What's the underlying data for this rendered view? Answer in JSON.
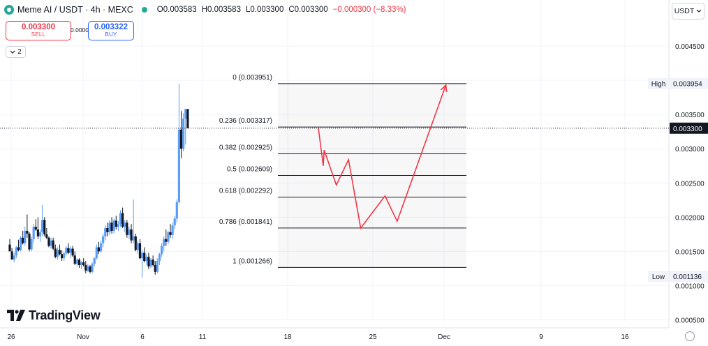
{
  "header": {
    "title": "Meme AI / USDT · 4h · MEXC",
    "open": "O0.003583",
    "high": "H0.003583",
    "low": "L0.003300",
    "close": "C0.003300",
    "change": "−0.000300 (−8.33%)"
  },
  "trade": {
    "sell_price": "0.003300",
    "sell_label": "SELL",
    "spread": "0.000022",
    "buy_price": "0.003322",
    "buy_label": "BUY"
  },
  "indicators_count": "2",
  "currency": "USDT",
  "brand": "TradingView",
  "colors": {
    "up": "#5b9cf6",
    "down": "#131722",
    "projection": "#f23645",
    "fib_line": "#131722",
    "price_tag": "#131722"
  },
  "chart_data": {
    "type": "candlestick",
    "x_tick_labels": [
      "26",
      "Nov",
      "6",
      "11",
      "18",
      "25",
      "Dec",
      "9",
      "16"
    ],
    "y_ticks": [
      "0.004500",
      "0.004000",
      "0.003500",
      "0.003000",
      "0.002500",
      "0.002000",
      "0.001500",
      "0.001000",
      "0.000500"
    ],
    "ylim": [
      0.0004,
      0.0046
    ],
    "last_price": "0.003300",
    "high_label": "High",
    "high_value": "0.003954",
    "low_label": "Low",
    "low_value": "0.001136",
    "fibonacci": [
      {
        "label": "0 (0.003951)",
        "value": 0.003951
      },
      {
        "label": "0.236 (0.003317)",
        "value": 0.003317
      },
      {
        "label": "0.382 (0.002925)",
        "value": 0.002925
      },
      {
        "label": "0.5 (0.002609)",
        "value": 0.002609
      },
      {
        "label": "0.618 (0.002292)",
        "value": 0.002292
      },
      {
        "label": "0.786 (0.001841)",
        "value": 0.001841
      },
      {
        "label": "1 (0.001266)",
        "value": 0.001266
      }
    ],
    "projection_path": [
      {
        "date": "Nov 20",
        "price": 0.0033
      },
      {
        "date": "Nov 20",
        "price": 0.00275
      },
      {
        "date": "Nov 21",
        "price": 0.00298
      },
      {
        "date": "Nov 22",
        "price": 0.00247
      },
      {
        "date": "Nov 23",
        "price": 0.00284
      },
      {
        "date": "Nov 24",
        "price": 0.00184
      },
      {
        "date": "Nov 26",
        "price": 0.00231
      },
      {
        "date": "Nov 27",
        "price": 0.00194
      },
      {
        "date": "Dec 1",
        "price": 0.00393
      }
    ],
    "candles": [
      [
        0.0016,
        0.00168,
        0.00152,
        0.0015
      ],
      [
        0.0015,
        0.00155,
        0.00142,
        0.00138
      ],
      [
        0.00138,
        0.00148,
        0.00134,
        0.00144
      ],
      [
        0.00144,
        0.00158,
        0.0014,
        0.00156
      ],
      [
        0.00156,
        0.00167,
        0.0015,
        0.00152
      ],
      [
        0.00152,
        0.00172,
        0.0015,
        0.0017
      ],
      [
        0.0017,
        0.0018,
        0.0016,
        0.00162
      ],
      [
        0.00162,
        0.00186,
        0.00158,
        0.0018
      ],
      [
        0.0018,
        0.00204,
        0.0017,
        0.00176
      ],
      [
        0.00176,
        0.00178,
        0.0015,
        0.00153
      ],
      [
        0.00153,
        0.00172,
        0.0015,
        0.00168
      ],
      [
        0.00168,
        0.0019,
        0.00162,
        0.00186
      ],
      [
        0.00186,
        0.00197,
        0.0018,
        0.00182
      ],
      [
        0.00182,
        0.002,
        0.00168,
        0.00172
      ],
      [
        0.00172,
        0.00182,
        0.00164,
        0.00178
      ],
      [
        0.00178,
        0.00218,
        0.00172,
        0.00196
      ],
      [
        0.00196,
        0.002,
        0.00172,
        0.00175
      ],
      [
        0.00175,
        0.00184,
        0.00168,
        0.0017
      ],
      [
        0.0017,
        0.00172,
        0.00156,
        0.00158
      ],
      [
        0.00158,
        0.0017,
        0.00154,
        0.00166
      ],
      [
        0.00166,
        0.0017,
        0.00152,
        0.00154
      ],
      [
        0.00154,
        0.0016,
        0.0014,
        0.00142
      ],
      [
        0.00142,
        0.00156,
        0.00138,
        0.00152
      ],
      [
        0.00152,
        0.0016,
        0.00144,
        0.00146
      ],
      [
        0.00146,
        0.00152,
        0.00136,
        0.0014
      ],
      [
        0.0014,
        0.0015,
        0.00136,
        0.00147
      ],
      [
        0.00147,
        0.00158,
        0.00144,
        0.00155
      ],
      [
        0.00155,
        0.00162,
        0.00146,
        0.00148
      ],
      [
        0.00148,
        0.00158,
        0.0014,
        0.00154
      ],
      [
        0.00154,
        0.00158,
        0.00142,
        0.00144
      ],
      [
        0.00144,
        0.0015,
        0.0013,
        0.00132
      ],
      [
        0.00132,
        0.0014,
        0.00128,
        0.00138
      ],
      [
        0.00138,
        0.0014,
        0.00126,
        0.0013
      ],
      [
        0.0013,
        0.00136,
        0.00124,
        0.00134
      ],
      [
        0.00134,
        0.0014,
        0.00128,
        0.0013
      ],
      [
        0.0013,
        0.00136,
        0.00118,
        0.00122
      ],
      [
        0.00122,
        0.00132,
        0.0012,
        0.00128
      ],
      [
        0.00128,
        0.0013,
        0.00118,
        0.0012
      ],
      [
        0.0012,
        0.00134,
        0.00118,
        0.00132
      ],
      [
        0.00132,
        0.00142,
        0.00128,
        0.0014
      ],
      [
        0.0014,
        0.0016,
        0.00138,
        0.00156
      ],
      [
        0.00156,
        0.00164,
        0.00146,
        0.0015
      ],
      [
        0.0015,
        0.00166,
        0.00148,
        0.00162
      ],
      [
        0.00162,
        0.00176,
        0.00156,
        0.00172
      ],
      [
        0.00172,
        0.00188,
        0.00166,
        0.00184
      ],
      [
        0.00184,
        0.00192,
        0.00172,
        0.00178
      ],
      [
        0.00178,
        0.00196,
        0.00174,
        0.00192
      ],
      [
        0.00192,
        0.002,
        0.00176,
        0.0018
      ],
      [
        0.0018,
        0.00198,
        0.00176,
        0.00195
      ],
      [
        0.00195,
        0.00202,
        0.00182,
        0.00186
      ],
      [
        0.00186,
        0.00194,
        0.0018,
        0.0019
      ],
      [
        0.0019,
        0.0021,
        0.00186,
        0.00206
      ],
      [
        0.00206,
        0.00214,
        0.00184,
        0.00186
      ],
      [
        0.00186,
        0.00196,
        0.00178,
        0.00192
      ],
      [
        0.00192,
        0.00196,
        0.0017,
        0.00174
      ],
      [
        0.00174,
        0.00186,
        0.00168,
        0.00182
      ],
      [
        0.00182,
        0.0019,
        0.00162,
        0.00166
      ],
      [
        0.00166,
        0.00226,
        0.00162,
        0.00172
      ],
      [
        0.00172,
        0.00176,
        0.0015,
        0.00152
      ],
      [
        0.00152,
        0.00166,
        0.00146,
        0.00162
      ],
      [
        0.00162,
        0.00168,
        0.00138,
        0.0014
      ],
      [
        0.0014,
        0.00152,
        0.00112,
        0.00148
      ],
      [
        0.00148,
        0.00156,
        0.00134,
        0.00136
      ],
      [
        0.00136,
        0.00146,
        0.0013,
        0.00142
      ],
      [
        0.00142,
        0.00148,
        0.00124,
        0.00128
      ],
      [
        0.00128,
        0.0014,
        0.00126,
        0.00138
      ],
      [
        0.00138,
        0.00144,
        0.00128,
        0.0013
      ],
      [
        0.0013,
        0.00136,
        0.00116,
        0.0012
      ],
      [
        0.0012,
        0.0014,
        0.00118,
        0.00136
      ],
      [
        0.00136,
        0.00148,
        0.0013,
        0.00146
      ],
      [
        0.00146,
        0.00162,
        0.00142,
        0.00158
      ],
      [
        0.00158,
        0.00172,
        0.0015,
        0.00168
      ],
      [
        0.00168,
        0.00182,
        0.00158,
        0.00164
      ],
      [
        0.00164,
        0.0018,
        0.0016,
        0.00178
      ],
      [
        0.00178,
        0.0019,
        0.0017,
        0.00174
      ],
      [
        0.00174,
        0.00192,
        0.00168,
        0.00188
      ],
      [
        0.00188,
        0.00202,
        0.00182,
        0.00198
      ],
      [
        0.00198,
        0.00226,
        0.00192,
        0.00222
      ],
      [
        0.00222,
        0.00395,
        0.0022,
        0.00328
      ],
      [
        0.00328,
        0.00355,
        0.00286,
        0.003
      ],
      [
        0.003,
        0.00352,
        0.00296,
        0.00344
      ],
      [
        0.00344,
        0.00358,
        0.00306,
        0.00358
      ],
      [
        0.00358,
        0.00358,
        0.0033,
        0.0033
      ]
    ]
  }
}
